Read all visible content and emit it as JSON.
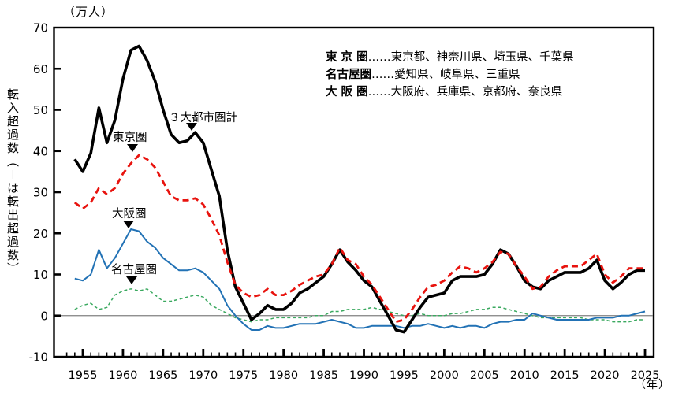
{
  "figure": {
    "y_unit_label": "（万人）",
    "x_unit_label": "（年）",
    "y_axis_title": "転入超過数（－は転出超過数）",
    "legend": [
      {
        "name": "東 京 圏",
        "desc": "……東京都、神奈川県、埼玉県、千葉県"
      },
      {
        "name": "名古屋圏",
        "desc": "……愛知県、岐阜県、三重県"
      },
      {
        "name": "大 阪 圏",
        "desc": "……大阪府、兵庫県、京都府、奈良県"
      }
    ],
    "annotations": [
      {
        "label": "３大都市圏計"
      },
      {
        "label": "東京圏"
      },
      {
        "label": "大阪圏"
      },
      {
        "label": "名古屋圏"
      }
    ]
  },
  "chart_data": {
    "type": "line",
    "title": "",
    "y_unit": "（万人）",
    "xlabel": "（年）",
    "ylabel": "転入超過数（－は転出超過数）",
    "ylim": [
      -10,
      70
    ],
    "y_ticks": [
      70,
      60,
      50,
      40,
      30,
      20,
      10,
      0,
      -10
    ],
    "x_tick_labels": [
      1955,
      1960,
      1965,
      1970,
      1975,
      1980,
      1985,
      1990,
      1995,
      2000,
      2005,
      2010,
      2015,
      2020,
      2025
    ],
    "grid": false,
    "zero_line": true,
    "zero_line_color": "#808080",
    "legend_position": "top-right-inside",
    "x": [
      1954,
      1955,
      1956,
      1957,
      1958,
      1959,
      1960,
      1961,
      1962,
      1963,
      1964,
      1965,
      1966,
      1967,
      1968,
      1969,
      1970,
      1971,
      1972,
      1973,
      1974,
      1975,
      1976,
      1977,
      1978,
      1979,
      1980,
      1981,
      1982,
      1983,
      1984,
      1985,
      1986,
      1987,
      1988,
      1989,
      1990,
      1991,
      1992,
      1993,
      1994,
      1995,
      1996,
      1997,
      1998,
      1999,
      2000,
      2001,
      2002,
      2003,
      2004,
      2005,
      2006,
      2007,
      2008,
      2009,
      2010,
      2011,
      2012,
      2013,
      2014,
      2015,
      2016,
      2017,
      2018,
      2019,
      2020,
      2021,
      2022,
      2023,
      2024,
      2025
    ],
    "series": [
      {
        "name": "３大都市圏計",
        "color": "#000000",
        "style": "solid",
        "width": 3.6,
        "values": [
          38,
          35,
          39.5,
          50.5,
          42,
          47.5,
          57.5,
          64.5,
          65.5,
          62,
          57,
          50,
          44,
          42,
          42.5,
          44.5,
          42,
          35.5,
          29,
          16,
          7,
          3,
          -1,
          0.5,
          2.5,
          1.5,
          1.5,
          3,
          5.5,
          6.5,
          8,
          9.5,
          12.5,
          16,
          13,
          11,
          8.5,
          7,
          3.5,
          0,
          -3.5,
          -4,
          -1,
          2,
          4.5,
          5,
          5.5,
          8.5,
          9.5,
          9.5,
          9.5,
          10,
          12.5,
          16,
          15,
          12,
          8.5,
          7,
          6.5,
          8.5,
          9.5,
          10.5,
          10.5,
          10.5,
          11.5,
          13.5,
          8.5,
          6.5,
          8,
          10,
          11,
          11
        ]
      },
      {
        "name": "東京圏",
        "color": "#e8130e",
        "style": "dashed",
        "width": 2.8,
        "values": [
          27.5,
          26,
          27.5,
          31,
          29.5,
          31,
          34.5,
          37,
          39,
          38,
          36,
          32.5,
          29,
          28,
          28,
          28.5,
          27,
          23.5,
          19.5,
          13,
          7.5,
          5.5,
          4.5,
          5,
          6.5,
          5,
          5,
          6,
          7.5,
          8.5,
          9.5,
          10,
          12.5,
          16.5,
          13.5,
          12.5,
          9.5,
          7.5,
          4.5,
          1.5,
          -1.5,
          -1,
          1.5,
          4.5,
          7,
          7.5,
          8.5,
          10.5,
          12,
          11.5,
          10.5,
          11.5,
          13,
          15.5,
          15,
          12,
          9.5,
          6.5,
          7,
          9.5,
          11,
          12,
          12,
          12,
          13.5,
          15,
          10,
          8,
          9.5,
          11.5,
          11.5,
          11.5
        ]
      },
      {
        "name": "大阪圏",
        "color": "#2272b5",
        "style": "solid",
        "width": 2,
        "values": [
          9,
          8.5,
          10,
          16,
          11.5,
          14,
          17.5,
          21,
          20.5,
          18,
          16.5,
          14,
          12.5,
          11,
          11,
          11.5,
          10.5,
          8.5,
          6.5,
          2.5,
          0,
          -2,
          -3.5,
          -3.5,
          -2.5,
          -3,
          -3,
          -2.5,
          -2,
          -2,
          -2,
          -1.5,
          -1,
          -1.5,
          -2,
          -3,
          -3,
          -2.5,
          -2.5,
          -2.5,
          -2.5,
          -3,
          -2.5,
          -2.5,
          -2,
          -2.5,
          -3,
          -2.5,
          -3,
          -2.5,
          -2.5,
          -3,
          -2,
          -1.5,
          -1.5,
          -1,
          -1,
          0.5,
          0,
          -0.5,
          -1,
          -1,
          -1,
          -1,
          -1,
          -0.5,
          -0.5,
          -0.5,
          0,
          0,
          0.5,
          1
        ]
      },
      {
        "name": "名古屋圏",
        "color": "#3aa95f",
        "style": "short-dashed",
        "width": 1.5,
        "values": [
          1.5,
          2.5,
          3,
          1.5,
          2,
          5,
          6,
          6.5,
          6,
          6.5,
          5,
          3.5,
          3.5,
          4,
          4.5,
          5,
          4.5,
          2.5,
          1.5,
          0.5,
          -0.5,
          -1,
          -1.5,
          -1,
          -1,
          -0.5,
          -0.5,
          -0.5,
          -0.5,
          -0.5,
          0,
          0,
          1,
          1,
          1.5,
          1.5,
          1.5,
          2,
          1.5,
          1,
          0.5,
          0,
          0,
          0.5,
          0,
          0,
          0,
          0.5,
          0.5,
          1,
          1.5,
          1.5,
          2,
          2,
          1.5,
          1,
          0.5,
          0,
          -0.5,
          -0.5,
          -0.5,
          -0.5,
          -0.5,
          -0.5,
          -1,
          -1,
          -1,
          -1.5,
          -1.5,
          -1.5,
          -1,
          -1
        ]
      }
    ],
    "annotations": [
      {
        "label": "３大都市圏計",
        "points_to_series": "３大都市圏計",
        "points_to_year": 1969
      },
      {
        "label": "東京圏",
        "points_to_series": "東京圏",
        "points_to_year": 1962
      },
      {
        "label": "大阪圏",
        "points_to_series": "大阪圏",
        "points_to_year": 1961
      },
      {
        "label": "名古屋圏",
        "points_to_series": "名古屋圏",
        "points_to_year": 1962
      }
    ]
  }
}
